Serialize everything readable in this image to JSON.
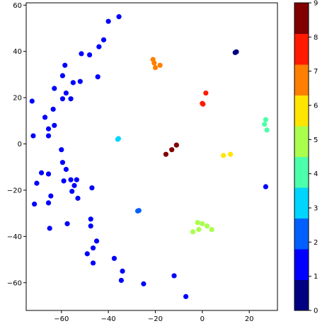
{
  "chart_data": {
    "type": "scatter",
    "title": "",
    "xlabel": "",
    "ylabel": "",
    "xlim": [
      -75,
      32
    ],
    "ylim": [
      -72,
      61
    ],
    "xticks": [
      -60,
      -40,
      -20,
      0,
      20
    ],
    "yticks": [
      -60,
      -40,
      -20,
      0,
      20,
      40,
      60
    ],
    "grid": false,
    "colorbar": {
      "range": [
        0,
        9
      ],
      "ticks": [
        0,
        1,
        2,
        3,
        4,
        5,
        6,
        7,
        8,
        9
      ],
      "colors": [
        "#000080",
        "#0000ff",
        "#0060ff",
        "#00d5ff",
        "#4cffaa",
        "#aaff4c",
        "#ffe500",
        "#ff7f00",
        "#ff1a00",
        "#800000"
      ]
    },
    "points": [
      {
        "x": -35.5,
        "y": 55,
        "c": 1
      },
      {
        "x": -40,
        "y": 53,
        "c": 1
      },
      {
        "x": -42,
        "y": 45,
        "c": 1
      },
      {
        "x": -44,
        "y": 42,
        "c": 1
      },
      {
        "x": -48,
        "y": 38.5,
        "c": 1
      },
      {
        "x": -51.5,
        "y": 39,
        "c": 1
      },
      {
        "x": -58.5,
        "y": 34,
        "c": 1
      },
      {
        "x": -59.5,
        "y": 29.5,
        "c": 1
      },
      {
        "x": -44.5,
        "y": 29,
        "c": 1
      },
      {
        "x": -55,
        "y": 26.5,
        "c": 1
      },
      {
        "x": -52,
        "y": 27,
        "c": 1
      },
      {
        "x": -63,
        "y": 24,
        "c": 1
      },
      {
        "x": -58,
        "y": 22,
        "c": 1
      },
      {
        "x": -56,
        "y": 19.5,
        "c": 1
      },
      {
        "x": -59.5,
        "y": 19.5,
        "c": 1
      },
      {
        "x": -72.5,
        "y": 18.5,
        "c": 1
      },
      {
        "x": -63.5,
        "y": 15,
        "c": 1
      },
      {
        "x": -67,
        "y": 11.5,
        "c": 1
      },
      {
        "x": -63,
        "y": 8,
        "c": 1
      },
      {
        "x": -65.5,
        "y": 6.5,
        "c": 1
      },
      {
        "x": -72,
        "y": 3.5,
        "c": 1
      },
      {
        "x": -65.5,
        "y": 3.5,
        "c": 1
      },
      {
        "x": -60,
        "y": -2.5,
        "c": 1
      },
      {
        "x": -59.5,
        "y": -8,
        "c": 1
      },
      {
        "x": -58,
        "y": -11,
        "c": 1
      },
      {
        "x": -68.5,
        "y": -12.5,
        "c": 1
      },
      {
        "x": -65.5,
        "y": -13,
        "c": 1
      },
      {
        "x": -53.5,
        "y": -15.5,
        "c": 1
      },
      {
        "x": -56,
        "y": -15.5,
        "c": 1
      },
      {
        "x": -59,
        "y": -16,
        "c": 1
      },
      {
        "x": -70.5,
        "y": -17,
        "c": 1
      },
      {
        "x": -54.5,
        "y": -18,
        "c": 1
      },
      {
        "x": -47,
        "y": -19,
        "c": 1
      },
      {
        "x": -55.5,
        "y": -20.5,
        "c": 1
      },
      {
        "x": -64.5,
        "y": -22.5,
        "c": 1
      },
      {
        "x": -53,
        "y": -23.5,
        "c": 1
      },
      {
        "x": -65.5,
        "y": -25.5,
        "c": 1
      },
      {
        "x": -71.5,
        "y": -26,
        "c": 1
      },
      {
        "x": -47.5,
        "y": -32.5,
        "c": 1
      },
      {
        "x": -57.5,
        "y": -34.5,
        "c": 1
      },
      {
        "x": -47.5,
        "y": -35.5,
        "c": 1
      },
      {
        "x": -65,
        "y": -36.5,
        "c": 1
      },
      {
        "x": -45,
        "y": -42,
        "c": 1
      },
      {
        "x": -46.5,
        "y": -45,
        "c": 1
      },
      {
        "x": -49,
        "y": -47.5,
        "c": 1
      },
      {
        "x": -37.5,
        "y": -49.5,
        "c": 1
      },
      {
        "x": -46.5,
        "y": -51.5,
        "c": 1
      },
      {
        "x": -34,
        "y": -55,
        "c": 1
      },
      {
        "x": -12,
        "y": -57,
        "c": 1
      },
      {
        "x": -34.5,
        "y": -59,
        "c": 1
      },
      {
        "x": -25,
        "y": -60.5,
        "c": 1
      },
      {
        "x": -7,
        "y": -66,
        "c": 1
      },
      {
        "x": 27,
        "y": -18.5,
        "c": 1
      },
      {
        "x": 14,
        "y": 39.5,
        "c": 0
      },
      {
        "x": 14.5,
        "y": 39.8,
        "c": 0
      },
      {
        "x": -21,
        "y": 36.5,
        "c": 7
      },
      {
        "x": -20.5,
        "y": 35,
        "c": 7
      },
      {
        "x": -18,
        "y": 34,
        "c": 7
      },
      {
        "x": -20,
        "y": 33,
        "c": 7
      },
      {
        "x": 1.5,
        "y": 22,
        "c": 8
      },
      {
        "x": 0,
        "y": 17.5,
        "c": 8
      },
      {
        "x": 0.3,
        "y": 17.2,
        "c": 8
      },
      {
        "x": 27,
        "y": 10.5,
        "c": 4
      },
      {
        "x": 26.5,
        "y": 8.5,
        "c": 4
      },
      {
        "x": 27.5,
        "y": 6,
        "c": 4
      },
      {
        "x": -36,
        "y": 2,
        "c": 3
      },
      {
        "x": -35.7,
        "y": 2.3,
        "c": 3
      },
      {
        "x": -11,
        "y": -0.5,
        "c": 9
      },
      {
        "x": -13,
        "y": -2.5,
        "c": 9
      },
      {
        "x": -15.5,
        "y": -4.5,
        "c": 9
      },
      {
        "x": 12,
        "y": -4.5,
        "c": 6
      },
      {
        "x": 9,
        "y": -5,
        "c": 6
      },
      {
        "x": -27.5,
        "y": -29,
        "c": 2
      },
      {
        "x": -27,
        "y": -28.8,
        "c": 2
      },
      {
        "x": -2,
        "y": -34,
        "c": 5
      },
      {
        "x": 0,
        "y": -34.5,
        "c": 5
      },
      {
        "x": 2,
        "y": -35.5,
        "c": 5
      },
      {
        "x": -1.5,
        "y": -37,
        "c": 5
      },
      {
        "x": 4,
        "y": -37,
        "c": 5
      },
      {
        "x": -4,
        "y": -38,
        "c": 5
      }
    ]
  }
}
